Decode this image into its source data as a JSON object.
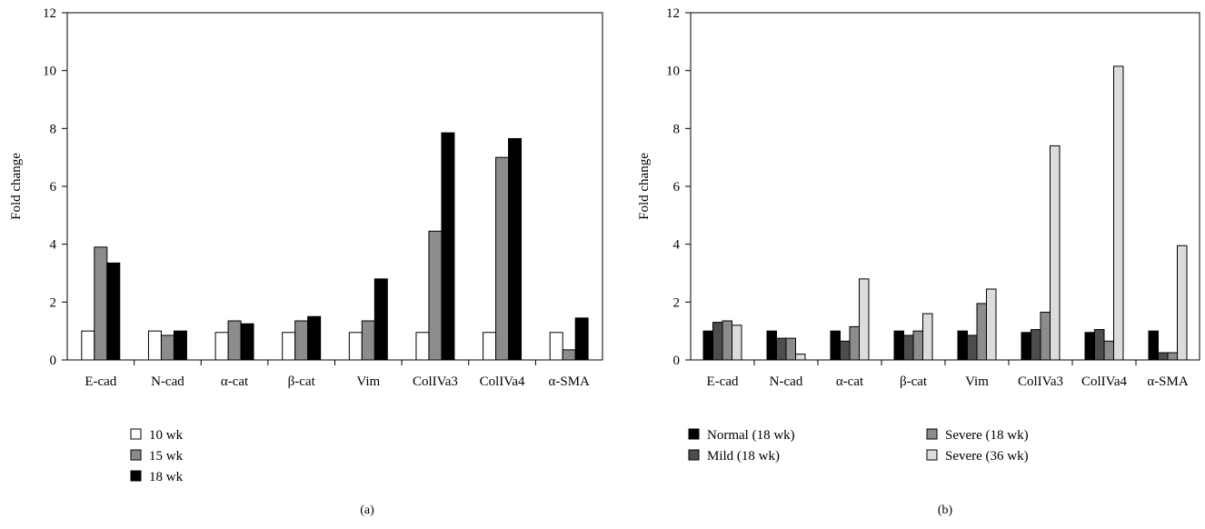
{
  "chart_data": [
    {
      "panel_label": "(a)",
      "type": "bar",
      "ylabel": "Fold change",
      "ylim": [
        0,
        12
      ],
      "yticks": [
        "0",
        "2",
        "4",
        "6",
        "8",
        "10",
        "12"
      ],
      "categories": [
        "E-cad",
        "N-cad",
        "α-cat",
        "β-cat",
        "Vim",
        "ColIVa3",
        "ColIVa4",
        "α-SMA"
      ],
      "series": [
        {
          "name": "10 wk",
          "color": "#ffffff",
          "values": [
            1.0,
            1.0,
            0.95,
            0.95,
            0.95,
            0.95,
            0.95,
            0.95
          ]
        },
        {
          "name": "15 wk",
          "color": "#8c8c8c",
          "values": [
            3.9,
            0.85,
            1.35,
            1.35,
            1.35,
            4.45,
            7.0,
            0.35
          ]
        },
        {
          "name": "18 wk",
          "color": "#000000",
          "values": [
            3.35,
            1.0,
            1.25,
            1.5,
            2.8,
            7.85,
            7.65,
            1.45
          ]
        }
      ],
      "legend_position": "bottom-left"
    },
    {
      "panel_label": "(b)",
      "type": "bar",
      "ylabel": "Fold change",
      "ylim": [
        0,
        12
      ],
      "yticks": [
        "0",
        "2",
        "4",
        "6",
        "8",
        "10",
        "12"
      ],
      "categories": [
        "E-cad",
        "N-cad",
        "α-cat",
        "β-cat",
        "Vim",
        "ColIVa3",
        "ColIVa4",
        "α-SMA"
      ],
      "series": [
        {
          "name": "Normal (18 wk)",
          "color": "#000000",
          "values": [
            1.0,
            1.0,
            1.0,
            1.0,
            1.0,
            0.95,
            0.95,
            1.0
          ]
        },
        {
          "name": "Mild (18 wk)",
          "color": "#4d4d4d",
          "values": [
            1.3,
            0.75,
            0.65,
            0.85,
            0.85,
            1.05,
            1.05,
            0.25
          ]
        },
        {
          "name": "Severe (18 wk)",
          "color": "#8c8c8c",
          "values": [
            1.35,
            0.75,
            1.15,
            1.0,
            1.95,
            1.65,
            0.65,
            0.25
          ]
        },
        {
          "name": "Severe (36 wk)",
          "color": "#dcdcdc",
          "values": [
            1.2,
            0.2,
            2.8,
            1.6,
            2.45,
            7.4,
            10.15,
            3.95
          ]
        }
      ],
      "legend_position": "bottom"
    }
  ]
}
